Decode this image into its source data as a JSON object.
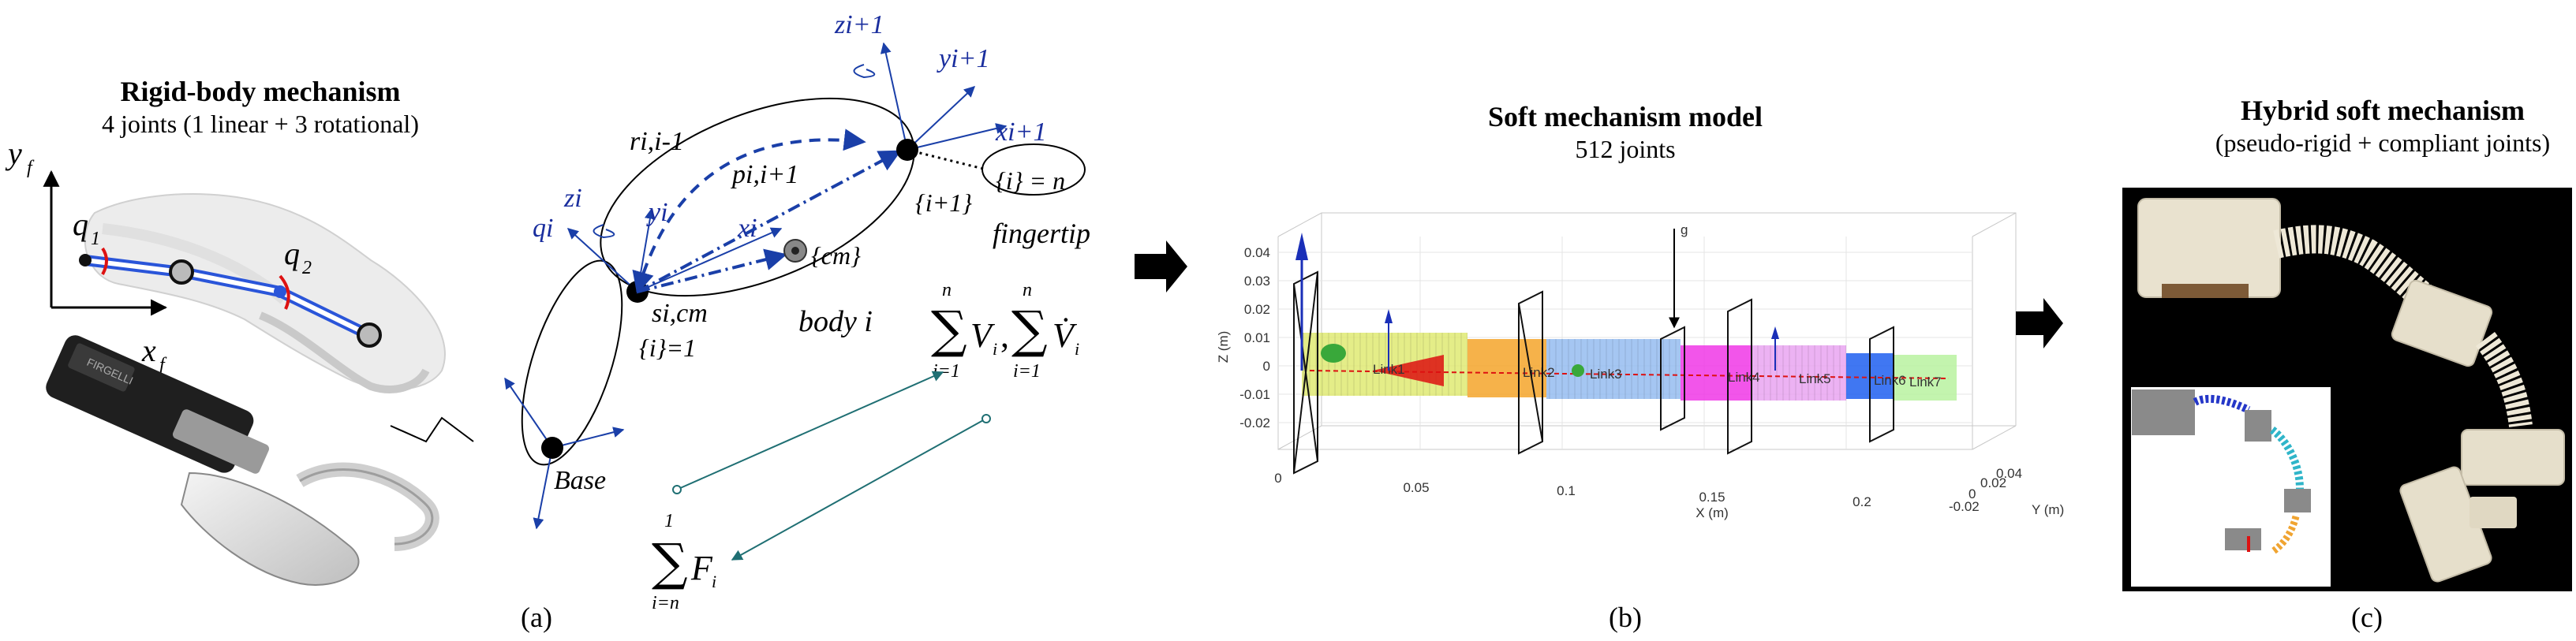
{
  "panel_a": {
    "title": "Rigid-body mechanism",
    "subtitle": "4 joints (1 linear + 3 rotational)",
    "caption": "(a)",
    "labels": {
      "y_axis": "y",
      "y_sub": "f",
      "x_axis": "x",
      "x_sub": "f",
      "q1": "q",
      "q1_sub": "1",
      "q2": "q",
      "q2_sub": "2",
      "device_brand": "FIRGELLI",
      "base": "Base",
      "frame_i": "{i}=1",
      "frame_i1": "{i+1}",
      "frame_n": "{i} = n",
      "cm": "{cm}",
      "fingertip": "fingertip",
      "body": "body  i",
      "ri": "ri,i-1",
      "pi": "pi,i+1",
      "si": "si,cm",
      "zi": "zi",
      "yi": "yi",
      "xi": "xi",
      "qi": "qi",
      "zi1": "zi+1",
      "yi1": "yi+1",
      "xi1": "xi+1"
    },
    "sums": {
      "sigma": "∑",
      "upper": "n",
      "lower": "i=1",
      "V": "V",
      "Vdot": "V̇",
      "idx": "i",
      "F_upper": "1",
      "F_lower": "i=n",
      "F": "F"
    }
  },
  "panel_b": {
    "title": "Soft mechanism model",
    "subtitle": "512 joints",
    "caption": "(b)",
    "gravity_label": "g",
    "z_label": "Z (m)",
    "x_label": "X (m)",
    "y_label": "Y (m)",
    "z_ticks": [
      "0.04",
      "0.03",
      "0.02",
      "0.01",
      "0",
      "-0.01",
      "-0.02"
    ],
    "x_ticks": [
      "0",
      "0.05",
      "0.1",
      "0.15",
      "0.2"
    ],
    "y_ticks": [
      "0.04",
      "0.02",
      "0",
      "-0.02"
    ],
    "links": [
      "Link1",
      "Link2",
      "Link3",
      "Link4",
      "Link5",
      "Link6",
      "Link7"
    ],
    "link_colors": [
      "#dde86a",
      "#f5a52a",
      "#8fb8ef",
      "#f037e6",
      "#e79ff0",
      "#1f5ff0",
      "#b8f2a0"
    ]
  },
  "panel_c": {
    "title": "Hybrid soft mechanism",
    "subtitle": "(pseudo-rigid + compliant joints)",
    "caption": "(c)"
  }
}
